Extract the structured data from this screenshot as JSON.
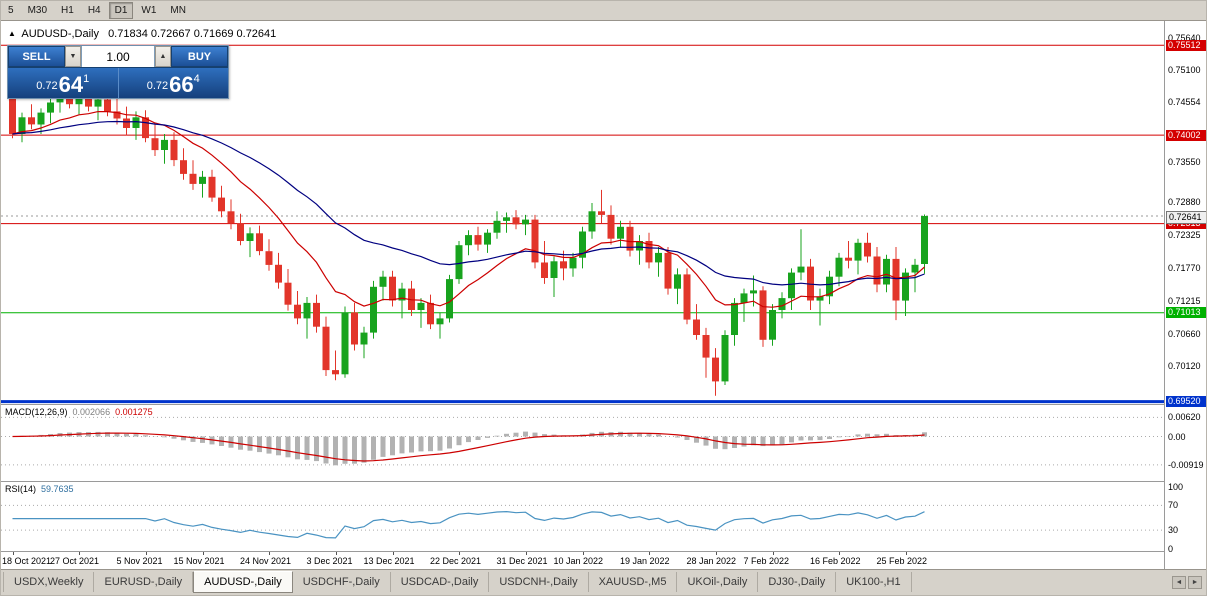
{
  "toolbar": {
    "timeframes": [
      "5",
      "M30",
      "H1",
      "H4",
      "D1",
      "W1",
      "MN"
    ],
    "active_timeframe": "D1"
  },
  "icons": {
    "collapse_arrow": "▲",
    "spinner_up": "▲",
    "spinner_down": "▼",
    "tab_scroll_left": "◄",
    "tab_scroll_right": "►"
  },
  "chart_header": {
    "symbol": "AUDUSD-,Daily",
    "ohlc": "0.71834 0.72667 0.71669 0.72641"
  },
  "trade_panel": {
    "sell_label": "SELL",
    "buy_label": "BUY",
    "lot_size": "1.00",
    "bid": {
      "prefix": "0.72",
      "big": "64",
      "sup": "1"
    },
    "ask": {
      "prefix": "0.72",
      "big": "66",
      "sup": "4"
    }
  },
  "chart_data": {
    "type": "candlestick",
    "symbol": "AUDUSD-",
    "timeframe": "Daily",
    "current": {
      "open": 0.71834,
      "high": 0.72667,
      "low": 0.71669,
      "close": 0.72641,
      "bid": 0.72641,
      "ask": 0.72664
    },
    "ylim": [
      0.6948,
      0.7592
    ],
    "y_ticks": [
      "0.75640",
      "0.75100",
      "0.74554",
      "0.73550",
      "0.72880",
      "0.72325",
      "0.71770",
      "0.71215",
      "0.70660",
      "0.70120"
    ],
    "hlines": [
      {
        "price": 0.75512,
        "label": "0.75512",
        "color": "#d40000",
        "width": 1
      },
      {
        "price": 0.74002,
        "label": "0.74002",
        "color": "#d40000",
        "width": 1
      },
      {
        "price": 0.72513,
        "label": "0.72513",
        "color": "#d40000",
        "width": 1
      },
      {
        "price": 0.71013,
        "label": "0.71013",
        "color": "#00b100",
        "width": 1
      },
      {
        "price": 0.6952,
        "label": "0.69520",
        "color": "#0033cc",
        "width": 3
      }
    ],
    "price_marker": {
      "price": 0.72641,
      "label": "0.72641"
    },
    "colors": {
      "bull": "#18a31e",
      "bear": "#e2352a",
      "ma_fast": "#cc0000",
      "ma_slow": "#000080",
      "macd_hist": "#b2b2b2",
      "macd_signal": "#cc0000",
      "rsi": "#4a93c2"
    },
    "moving_averages": [
      {
        "period": 13,
        "color_key": "ma_fast"
      },
      {
        "period": 34,
        "color_key": "ma_slow"
      }
    ],
    "x_labels": [
      {
        "text": "18 Oct 2021",
        "i": 0
      },
      {
        "text": "27 Oct 2021",
        "i": 7
      },
      {
        "text": "5 Nov 2021",
        "i": 14
      },
      {
        "text": "15 Nov 2021",
        "i": 20
      },
      {
        "text": "24 Nov 2021",
        "i": 27
      },
      {
        "text": "3 Dec 2021",
        "i": 34
      },
      {
        "text": "13 Dec 2021",
        "i": 40
      },
      {
        "text": "22 Dec 2021",
        "i": 47
      },
      {
        "text": "31 Dec 2021",
        "i": 54
      },
      {
        "text": "10 Jan 2022",
        "i": 60
      },
      {
        "text": "19 Jan 2022",
        "i": 67
      },
      {
        "text": "28 Jan 2022",
        "i": 74
      },
      {
        "text": "7 Feb 2022",
        "i": 80
      },
      {
        "text": "16 Feb 2022",
        "i": 87
      },
      {
        "text": "25 Feb 2022",
        "i": 94
      }
    ],
    "candles": [
      [
        0.7462,
        0.7468,
        0.7395,
        0.7402
      ],
      [
        0.7402,
        0.7438,
        0.7388,
        0.743
      ],
      [
        0.743,
        0.7452,
        0.741,
        0.7418
      ],
      [
        0.7418,
        0.7445,
        0.7402,
        0.7438
      ],
      [
        0.7438,
        0.7462,
        0.742,
        0.7455
      ],
      [
        0.7455,
        0.7478,
        0.7438,
        0.7468
      ],
      [
        0.7468,
        0.748,
        0.7445,
        0.7452
      ],
      [
        0.7452,
        0.7475,
        0.7435,
        0.7465
      ],
      [
        0.7465,
        0.7478,
        0.744,
        0.7448
      ],
      [
        0.7448,
        0.747,
        0.7425,
        0.746
      ],
      [
        0.746,
        0.7472,
        0.7432,
        0.744
      ],
      [
        0.744,
        0.7462,
        0.7418,
        0.7428
      ],
      [
        0.7428,
        0.7448,
        0.74,
        0.7412
      ],
      [
        0.7412,
        0.744,
        0.7392,
        0.743
      ],
      [
        0.743,
        0.7442,
        0.7388,
        0.7395
      ],
      [
        0.7395,
        0.7418,
        0.7365,
        0.7375
      ],
      [
        0.7375,
        0.7402,
        0.7352,
        0.7392
      ],
      [
        0.7392,
        0.7405,
        0.7348,
        0.7358
      ],
      [
        0.7358,
        0.7378,
        0.7325,
        0.7335
      ],
      [
        0.7335,
        0.7358,
        0.7308,
        0.7318
      ],
      [
        0.7318,
        0.734,
        0.7295,
        0.733
      ],
      [
        0.733,
        0.7342,
        0.7288,
        0.7295
      ],
      [
        0.7295,
        0.7315,
        0.7262,
        0.7272
      ],
      [
        0.7272,
        0.7292,
        0.7242,
        0.7252
      ],
      [
        0.7252,
        0.7268,
        0.7215,
        0.7222
      ],
      [
        0.7222,
        0.7245,
        0.7195,
        0.7235
      ],
      [
        0.7235,
        0.7248,
        0.7198,
        0.7205
      ],
      [
        0.7205,
        0.7225,
        0.7172,
        0.7182
      ],
      [
        0.7182,
        0.7202,
        0.7142,
        0.7152
      ],
      [
        0.7152,
        0.7175,
        0.7105,
        0.7115
      ],
      [
        0.7115,
        0.7138,
        0.7082,
        0.7092
      ],
      [
        0.7092,
        0.7128,
        0.7058,
        0.7118
      ],
      [
        0.7118,
        0.7132,
        0.7068,
        0.7078
      ],
      [
        0.7078,
        0.7095,
        0.6995,
        0.7005
      ],
      [
        0.7005,
        0.7038,
        0.6988,
        0.6998
      ],
      [
        0.6998,
        0.7112,
        0.6992,
        0.7102
      ],
      [
        0.7102,
        0.7118,
        0.7038,
        0.7048
      ],
      [
        0.7048,
        0.7078,
        0.7025,
        0.7068
      ],
      [
        0.7068,
        0.7155,
        0.7058,
        0.7145
      ],
      [
        0.7145,
        0.7172,
        0.7122,
        0.7162
      ],
      [
        0.7162,
        0.7172,
        0.7112,
        0.7122
      ],
      [
        0.7122,
        0.7152,
        0.7092,
        0.7142
      ],
      [
        0.7142,
        0.7155,
        0.7096,
        0.7106
      ],
      [
        0.7106,
        0.7126,
        0.7076,
        0.7118
      ],
      [
        0.7118,
        0.7132,
        0.7074,
        0.7082
      ],
      [
        0.7082,
        0.7102,
        0.7058,
        0.7092
      ],
      [
        0.7092,
        0.7165,
        0.7085,
        0.7158
      ],
      [
        0.7158,
        0.7222,
        0.715,
        0.7215
      ],
      [
        0.7215,
        0.724,
        0.7198,
        0.7232
      ],
      [
        0.7232,
        0.7246,
        0.7206,
        0.7216
      ],
      [
        0.7216,
        0.7242,
        0.7202,
        0.7236
      ],
      [
        0.7236,
        0.7272,
        0.7226,
        0.7256
      ],
      [
        0.7256,
        0.727,
        0.7236,
        0.7262
      ],
      [
        0.7262,
        0.7274,
        0.7242,
        0.725
      ],
      [
        0.725,
        0.7266,
        0.7232,
        0.7258
      ],
      [
        0.7258,
        0.7266,
        0.7176,
        0.7186
      ],
      [
        0.7186,
        0.7222,
        0.715,
        0.716
      ],
      [
        0.716,
        0.7196,
        0.7128,
        0.7188
      ],
      [
        0.7188,
        0.7206,
        0.7156,
        0.7176
      ],
      [
        0.7176,
        0.7202,
        0.7162,
        0.7194
      ],
      [
        0.7194,
        0.7246,
        0.7176,
        0.7238
      ],
      [
        0.7238,
        0.7286,
        0.7226,
        0.7272
      ],
      [
        0.7272,
        0.7308,
        0.7252,
        0.7266
      ],
      [
        0.7266,
        0.7282,
        0.7216,
        0.7226
      ],
      [
        0.7226,
        0.7256,
        0.7212,
        0.7246
      ],
      [
        0.7246,
        0.7256,
        0.7196,
        0.7206
      ],
      [
        0.7206,
        0.7232,
        0.7182,
        0.7222
      ],
      [
        0.7222,
        0.7236,
        0.7176,
        0.7186
      ],
      [
        0.7186,
        0.7212,
        0.7162,
        0.7202
      ],
      [
        0.7202,
        0.7212,
        0.7132,
        0.7142
      ],
      [
        0.7142,
        0.7176,
        0.7116,
        0.7166
      ],
      [
        0.7166,
        0.7176,
        0.7082,
        0.709
      ],
      [
        0.709,
        0.7116,
        0.7056,
        0.7064
      ],
      [
        0.7064,
        0.7076,
        0.6992,
        0.7026
      ],
      [
        0.7026,
        0.7042,
        0.6962,
        0.6986
      ],
      [
        0.6986,
        0.7072,
        0.698,
        0.7064
      ],
      [
        0.7064,
        0.7126,
        0.7046,
        0.7118
      ],
      [
        0.7118,
        0.7142,
        0.7086,
        0.7134
      ],
      [
        0.7134,
        0.7164,
        0.7112,
        0.7139
      ],
      [
        0.7139,
        0.7146,
        0.7044,
        0.7056
      ],
      [
        0.7056,
        0.7116,
        0.7046,
        0.7106
      ],
      [
        0.7106,
        0.7136,
        0.7092,
        0.7126
      ],
      [
        0.7126,
        0.7176,
        0.7106,
        0.7169
      ],
      [
        0.7169,
        0.7242,
        0.7156,
        0.7179
      ],
      [
        0.7179,
        0.7192,
        0.7106,
        0.7122
      ],
      [
        0.7122,
        0.7142,
        0.708,
        0.7129
      ],
      [
        0.7129,
        0.7172,
        0.7116,
        0.7162
      ],
      [
        0.7162,
        0.7202,
        0.7146,
        0.7194
      ],
      [
        0.7194,
        0.7222,
        0.7176,
        0.7189
      ],
      [
        0.7189,
        0.7226,
        0.7166,
        0.7219
      ],
      [
        0.7219,
        0.7236,
        0.7186,
        0.7196
      ],
      [
        0.7196,
        0.7212,
        0.7136,
        0.7149
      ],
      [
        0.7149,
        0.7199,
        0.7136,
        0.7192
      ],
      [
        0.7192,
        0.7212,
        0.7089,
        0.7122
      ],
      [
        0.7122,
        0.7176,
        0.7096,
        0.7169
      ],
      [
        0.7169,
        0.7192,
        0.7136,
        0.7182
      ],
      [
        0.71834,
        0.72667,
        0.71669,
        0.72641
      ]
    ],
    "macd": {
      "label": "MACD(12,26,9)",
      "value_main": "0.002066",
      "value_signal": "0.001275",
      "fast": 12,
      "slow": 26,
      "signal": 9,
      "ylim": [
        -0.0144,
        0.0102
      ],
      "y_ticks": [
        "0.00620",
        "0.00",
        "-0.00919"
      ],
      "y_tick_values": [
        0.0062,
        0,
        -0.00919
      ]
    },
    "rsi": {
      "label": "RSI(14)",
      "value": "59.7635",
      "period": 14,
      "ylim": [
        -4,
        108
      ],
      "y_ticks": [
        100,
        70,
        30,
        0
      ],
      "levels": [
        70,
        30
      ]
    }
  },
  "tabs": {
    "items": [
      "USDX,Weekly",
      "EURUSD-,Daily",
      "AUDUSD-,Daily",
      "USDCHF-,Daily",
      "USDCAD-,Daily",
      "USDCNH-,Daily",
      "XAUUSD-,M5",
      "UKOil-,Daily",
      "DJ30-,Daily",
      "UK100-,H1"
    ],
    "active": "AUDUSD-,Daily"
  }
}
